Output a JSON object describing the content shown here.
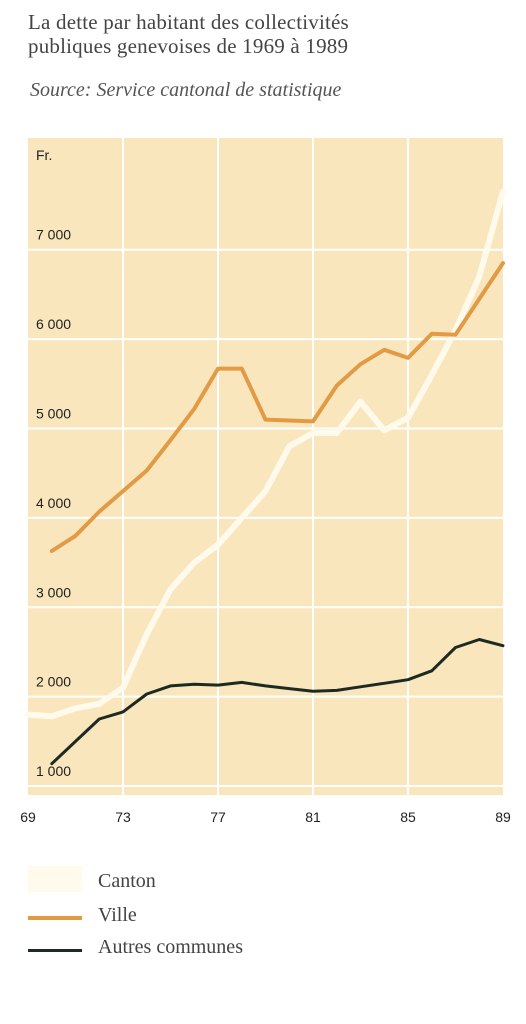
{
  "header": {
    "title_line1": "La dette par habitant des collectivités",
    "title_line2": "publiques genevoises de 1969 à 1989",
    "source": "Source: Service cantonal de statistique"
  },
  "colors": {
    "background": "#f9e6bc",
    "grid": "#ffffff",
    "canton": "#fffaec",
    "ville": "#e39a45",
    "autres": "#1d2a22"
  },
  "chart_data": {
    "type": "line",
    "title": "La dette par habitant des collectivités publiques genevoises de 1969 à 1989",
    "ylabel": "Fr.",
    "xlabel": "",
    "xlim": [
      69,
      89
    ],
    "ylim": [
      900,
      8250
    ],
    "x_ticks": [
      "69",
      "73",
      "77",
      "81",
      "85",
      "89"
    ],
    "x_tick_values": [
      69,
      73,
      77,
      81,
      85,
      89
    ],
    "y_ticks": [
      "1 000",
      "2 000",
      "3 000",
      "4 000",
      "5 000",
      "6 000",
      "7 000"
    ],
    "y_tick_values": [
      1000,
      2000,
      3000,
      4000,
      5000,
      6000,
      7000
    ],
    "grid": true,
    "legend_position": "bottom",
    "series": [
      {
        "name": "Canton",
        "color": "#fffaec",
        "x": [
          69,
          70,
          71,
          72,
          73,
          74,
          75,
          76,
          77,
          78,
          79,
          80,
          81,
          82,
          83,
          84,
          85,
          86,
          87,
          88,
          89
        ],
        "values": [
          1800,
          1780,
          1870,
          1920,
          2100,
          2700,
          3200,
          3500,
          3700,
          4000,
          4300,
          4800,
          4950,
          4950,
          5300,
          4980,
          5120,
          5600,
          6100,
          6700,
          7650
        ]
      },
      {
        "name": "Ville",
        "color": "#e39a45",
        "x": [
          70,
          71,
          72,
          73,
          74,
          75,
          76,
          77,
          78,
          79,
          80,
          81,
          82,
          83,
          84,
          85,
          86,
          87,
          88,
          89
        ],
        "values": [
          3630,
          3800,
          4070,
          4300,
          4530,
          4870,
          5220,
          5670,
          5670,
          5100,
          5090,
          5080,
          5480,
          5720,
          5880,
          5790,
          6060,
          6050,
          6450,
          6850
        ]
      },
      {
        "name": "Autres communes",
        "color": "#1d2a22",
        "x": [
          70,
          71,
          72,
          73,
          74,
          75,
          76,
          77,
          78,
          79,
          80,
          81,
          82,
          83,
          84,
          85,
          86,
          87,
          88,
          89
        ],
        "values": [
          1250,
          1500,
          1750,
          1830,
          2030,
          2120,
          2140,
          2130,
          2160,
          2120,
          2090,
          2060,
          2070,
          2110,
          2150,
          2190,
          2290,
          2550,
          2640,
          2570
        ]
      }
    ]
  }
}
